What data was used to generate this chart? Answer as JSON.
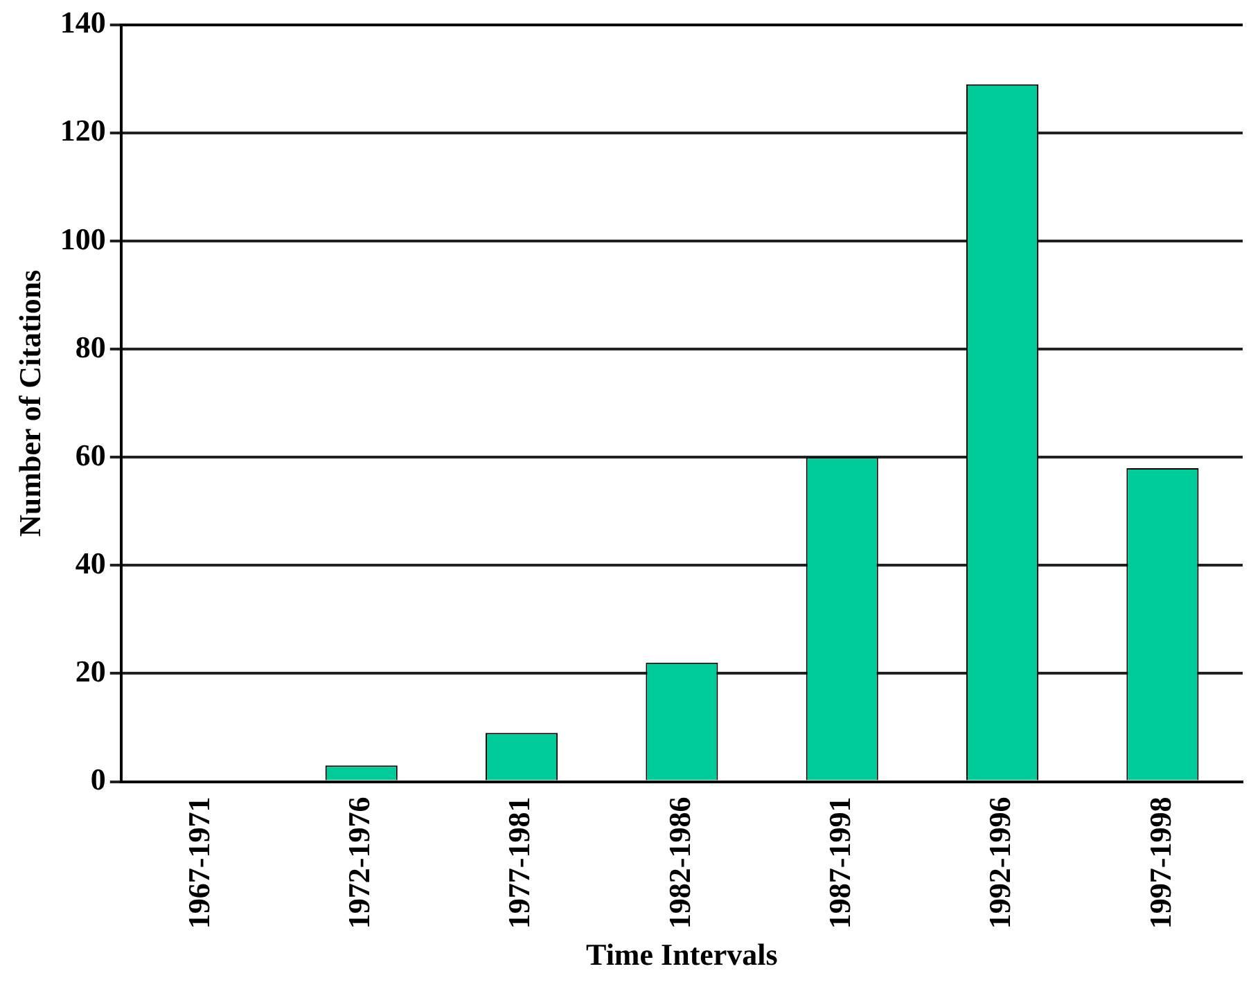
{
  "chart_data": {
    "type": "bar",
    "xlabel": "Time Intervals",
    "ylabel": "Number of Citations",
    "categories": [
      "1967-1971",
      "1972-1976",
      "1977-1981",
      "1982-1986",
      "1987-1991",
      "1992-1996",
      "1997-1998"
    ],
    "values": [
      0,
      3,
      9,
      22,
      60,
      129,
      58
    ],
    "color": "#00cc99",
    "ylim": [
      0,
      140
    ],
    "yticks": [
      0,
      20,
      40,
      60,
      80,
      100,
      120,
      140
    ],
    "grid": "y",
    "legend": false
  }
}
